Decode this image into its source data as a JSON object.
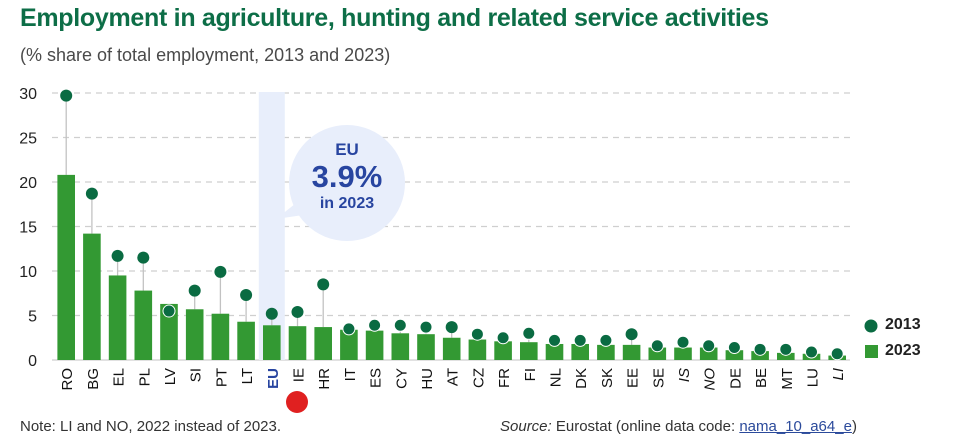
{
  "title": "Employment in agriculture, hunting and related service activities",
  "subtitle": "(% share of total employment, 2013 and 2023)",
  "note": "Note: LI and NO, 2022 instead of 2023.",
  "source": {
    "label": "Source:",
    "text": " Eurostat (online data code: ",
    "link": "nama_10_a64_e",
    "close": ")"
  },
  "callout": {
    "line1": "EU",
    "line2": "3.9%",
    "line3": "in 2023"
  },
  "colors": {
    "title": "#0d6e47",
    "bar_2023": "#339933",
    "dot_2013": "#0a6b42",
    "highlight": "#e8eefb",
    "eu_label": "#2845a0",
    "marker_red": "#e02020"
  },
  "chart_data": {
    "type": "bar",
    "title": "Employment in agriculture, hunting and related service activities",
    "subtitle": "(% share of total employment, 2013 and 2023)",
    "xlabel": "",
    "ylabel": "",
    "ylim": [
      0,
      30
    ],
    "yticks": [
      0,
      5,
      10,
      15,
      20,
      25,
      30
    ],
    "grid": true,
    "legend_position": "bottom-right",
    "categories": [
      "RO",
      "BG",
      "EL",
      "PL",
      "LV",
      "SI",
      "PT",
      "LT",
      "EU",
      "IE",
      "HR",
      "IT",
      "ES",
      "CY",
      "HU",
      "AT",
      "CZ",
      "FR",
      "FI",
      "NL",
      "DK",
      "SK",
      "EE",
      "SE",
      "IS",
      "NO",
      "DE",
      "BE",
      "MT",
      "LU",
      "LI"
    ],
    "italic_categories": [
      "IS",
      "NO",
      "LI"
    ],
    "highlight_category": "EU",
    "series": [
      {
        "name": "2013",
        "mark": "dot",
        "values": [
          29.7,
          18.7,
          11.7,
          11.5,
          5.5,
          7.8,
          9.9,
          7.3,
          5.2,
          5.4,
          8.5,
          3.5,
          3.9,
          3.9,
          3.7,
          3.7,
          2.9,
          2.5,
          3.0,
          2.2,
          2.2,
          2.2,
          2.9,
          1.6,
          2.0,
          1.6,
          1.4,
          1.2,
          1.2,
          0.9,
          0.7
        ]
      },
      {
        "name": "2023",
        "mark": "bar",
        "values": [
          20.8,
          14.2,
          9.5,
          7.8,
          6.3,
          5.7,
          5.2,
          4.3,
          3.9,
          3.8,
          3.7,
          3.4,
          3.3,
          3.0,
          2.9,
          2.5,
          2.3,
          2.1,
          2.0,
          1.8,
          1.8,
          1.7,
          1.7,
          1.4,
          1.4,
          1.4,
          1.1,
          1.0,
          0.8,
          0.7,
          0.5
        ]
      }
    ],
    "legend": [
      "2013",
      "2023"
    ]
  }
}
